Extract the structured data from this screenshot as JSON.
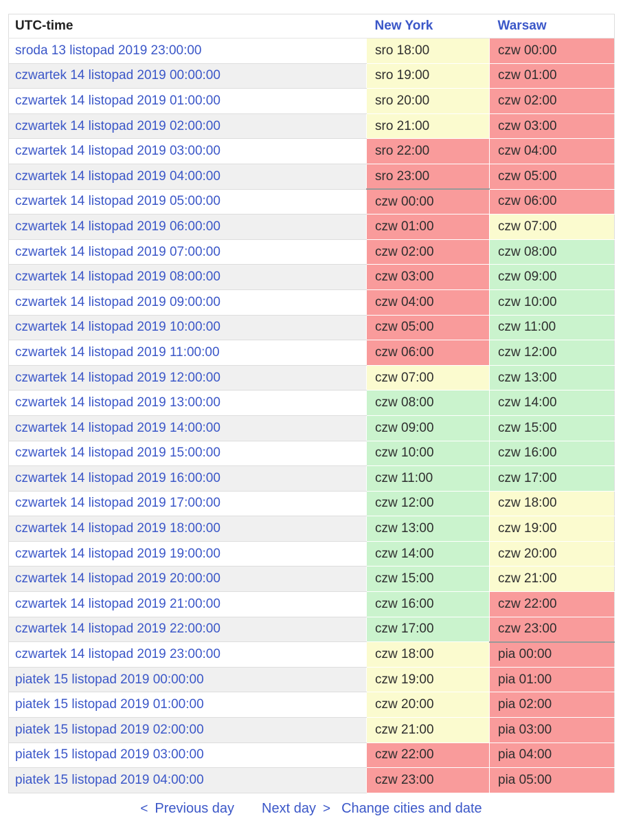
{
  "colors": {
    "yellow": "#FBFBCF",
    "red": "#F99B9B",
    "green": "#CAF3CD",
    "link": "#3B57C8",
    "row_alt": "#F0F0F0",
    "day_border": "#999999"
  },
  "table": {
    "headers": {
      "utc": "UTC-time",
      "city1": "New York",
      "city2": "Warsaw"
    },
    "rows": [
      {
        "utc": "sroda 13 listopad 2019 23:00:00",
        "ny": "sro 18:00",
        "ny_color": "yellow",
        "waw": "czw 00:00",
        "waw_color": "red"
      },
      {
        "utc": "czwartek 14 listopad 2019 00:00:00",
        "ny": "sro 19:00",
        "ny_color": "yellow",
        "waw": "czw 01:00",
        "waw_color": "red"
      },
      {
        "utc": "czwartek 14 listopad 2019 01:00:00",
        "ny": "sro 20:00",
        "ny_color": "yellow",
        "waw": "czw 02:00",
        "waw_color": "red"
      },
      {
        "utc": "czwartek 14 listopad 2019 02:00:00",
        "ny": "sro 21:00",
        "ny_color": "yellow",
        "waw": "czw 03:00",
        "waw_color": "red"
      },
      {
        "utc": "czwartek 14 listopad 2019 03:00:00",
        "ny": "sro 22:00",
        "ny_color": "red",
        "waw": "czw 04:00",
        "waw_color": "red"
      },
      {
        "utc": "czwartek 14 listopad 2019 04:00:00",
        "ny": "sro 23:00",
        "ny_color": "red",
        "ny_day_end": true,
        "waw": "czw 05:00",
        "waw_color": "red"
      },
      {
        "utc": "czwartek 14 listopad 2019 05:00:00",
        "ny": "czw 00:00",
        "ny_color": "red",
        "waw": "czw 06:00",
        "waw_color": "red"
      },
      {
        "utc": "czwartek 14 listopad 2019 06:00:00",
        "ny": "czw 01:00",
        "ny_color": "red",
        "waw": "czw 07:00",
        "waw_color": "yellow"
      },
      {
        "utc": "czwartek 14 listopad 2019 07:00:00",
        "ny": "czw 02:00",
        "ny_color": "red",
        "waw": "czw 08:00",
        "waw_color": "green"
      },
      {
        "utc": "czwartek 14 listopad 2019 08:00:00",
        "ny": "czw 03:00",
        "ny_color": "red",
        "waw": "czw 09:00",
        "waw_color": "green"
      },
      {
        "utc": "czwartek 14 listopad 2019 09:00:00",
        "ny": "czw 04:00",
        "ny_color": "red",
        "waw": "czw 10:00",
        "waw_color": "green"
      },
      {
        "utc": "czwartek 14 listopad 2019 10:00:00",
        "ny": "czw 05:00",
        "ny_color": "red",
        "waw": "czw 11:00",
        "waw_color": "green"
      },
      {
        "utc": "czwartek 14 listopad 2019 11:00:00",
        "ny": "czw 06:00",
        "ny_color": "red",
        "waw": "czw 12:00",
        "waw_color": "green"
      },
      {
        "utc": "czwartek 14 listopad 2019 12:00:00",
        "ny": "czw 07:00",
        "ny_color": "yellow",
        "waw": "czw 13:00",
        "waw_color": "green"
      },
      {
        "utc": "czwartek 14 listopad 2019 13:00:00",
        "ny": "czw 08:00",
        "ny_color": "green",
        "waw": "czw 14:00",
        "waw_color": "green"
      },
      {
        "utc": "czwartek 14 listopad 2019 14:00:00",
        "ny": "czw 09:00",
        "ny_color": "green",
        "waw": "czw 15:00",
        "waw_color": "green"
      },
      {
        "utc": "czwartek 14 listopad 2019 15:00:00",
        "ny": "czw 10:00",
        "ny_color": "green",
        "waw": "czw 16:00",
        "waw_color": "green"
      },
      {
        "utc": "czwartek 14 listopad 2019 16:00:00",
        "ny": "czw 11:00",
        "ny_color": "green",
        "waw": "czw 17:00",
        "waw_color": "green"
      },
      {
        "utc": "czwartek 14 listopad 2019 17:00:00",
        "ny": "czw 12:00",
        "ny_color": "green",
        "waw": "czw 18:00",
        "waw_color": "yellow"
      },
      {
        "utc": "czwartek 14 listopad 2019 18:00:00",
        "ny": "czw 13:00",
        "ny_color": "green",
        "waw": "czw 19:00",
        "waw_color": "yellow"
      },
      {
        "utc": "czwartek 14 listopad 2019 19:00:00",
        "ny": "czw 14:00",
        "ny_color": "green",
        "waw": "czw 20:00",
        "waw_color": "yellow"
      },
      {
        "utc": "czwartek 14 listopad 2019 20:00:00",
        "ny": "czw 15:00",
        "ny_color": "green",
        "waw": "czw 21:00",
        "waw_color": "yellow"
      },
      {
        "utc": "czwartek 14 listopad 2019 21:00:00",
        "ny": "czw 16:00",
        "ny_color": "green",
        "waw": "czw 22:00",
        "waw_color": "red"
      },
      {
        "utc": "czwartek 14 listopad 2019 22:00:00",
        "ny": "czw 17:00",
        "ny_color": "green",
        "waw": "czw 23:00",
        "waw_color": "red",
        "waw_day_end": true
      },
      {
        "utc": "czwartek 14 listopad 2019 23:00:00",
        "ny": "czw 18:00",
        "ny_color": "yellow",
        "waw": "pia 00:00",
        "waw_color": "red"
      },
      {
        "utc": "piatek 15 listopad 2019 00:00:00",
        "ny": "czw 19:00",
        "ny_color": "yellow",
        "waw": "pia 01:00",
        "waw_color": "red"
      },
      {
        "utc": "piatek 15 listopad 2019 01:00:00",
        "ny": "czw 20:00",
        "ny_color": "yellow",
        "waw": "pia 02:00",
        "waw_color": "red"
      },
      {
        "utc": "piatek 15 listopad 2019 02:00:00",
        "ny": "czw 21:00",
        "ny_color": "yellow",
        "waw": "pia 03:00",
        "waw_color": "red"
      },
      {
        "utc": "piatek 15 listopad 2019 03:00:00",
        "ny": "czw 22:00",
        "ny_color": "red",
        "waw": "pia 04:00",
        "waw_color": "red"
      },
      {
        "utc": "piatek 15 listopad 2019 04:00:00",
        "ny": "czw 23:00",
        "ny_color": "red",
        "waw": "pia 05:00",
        "waw_color": "red"
      }
    ]
  },
  "footer": {
    "prev_icon": "<",
    "prev_label": "Previous day",
    "next_label": "Next day",
    "next_icon": ">",
    "change_label": "Change cities and date"
  }
}
